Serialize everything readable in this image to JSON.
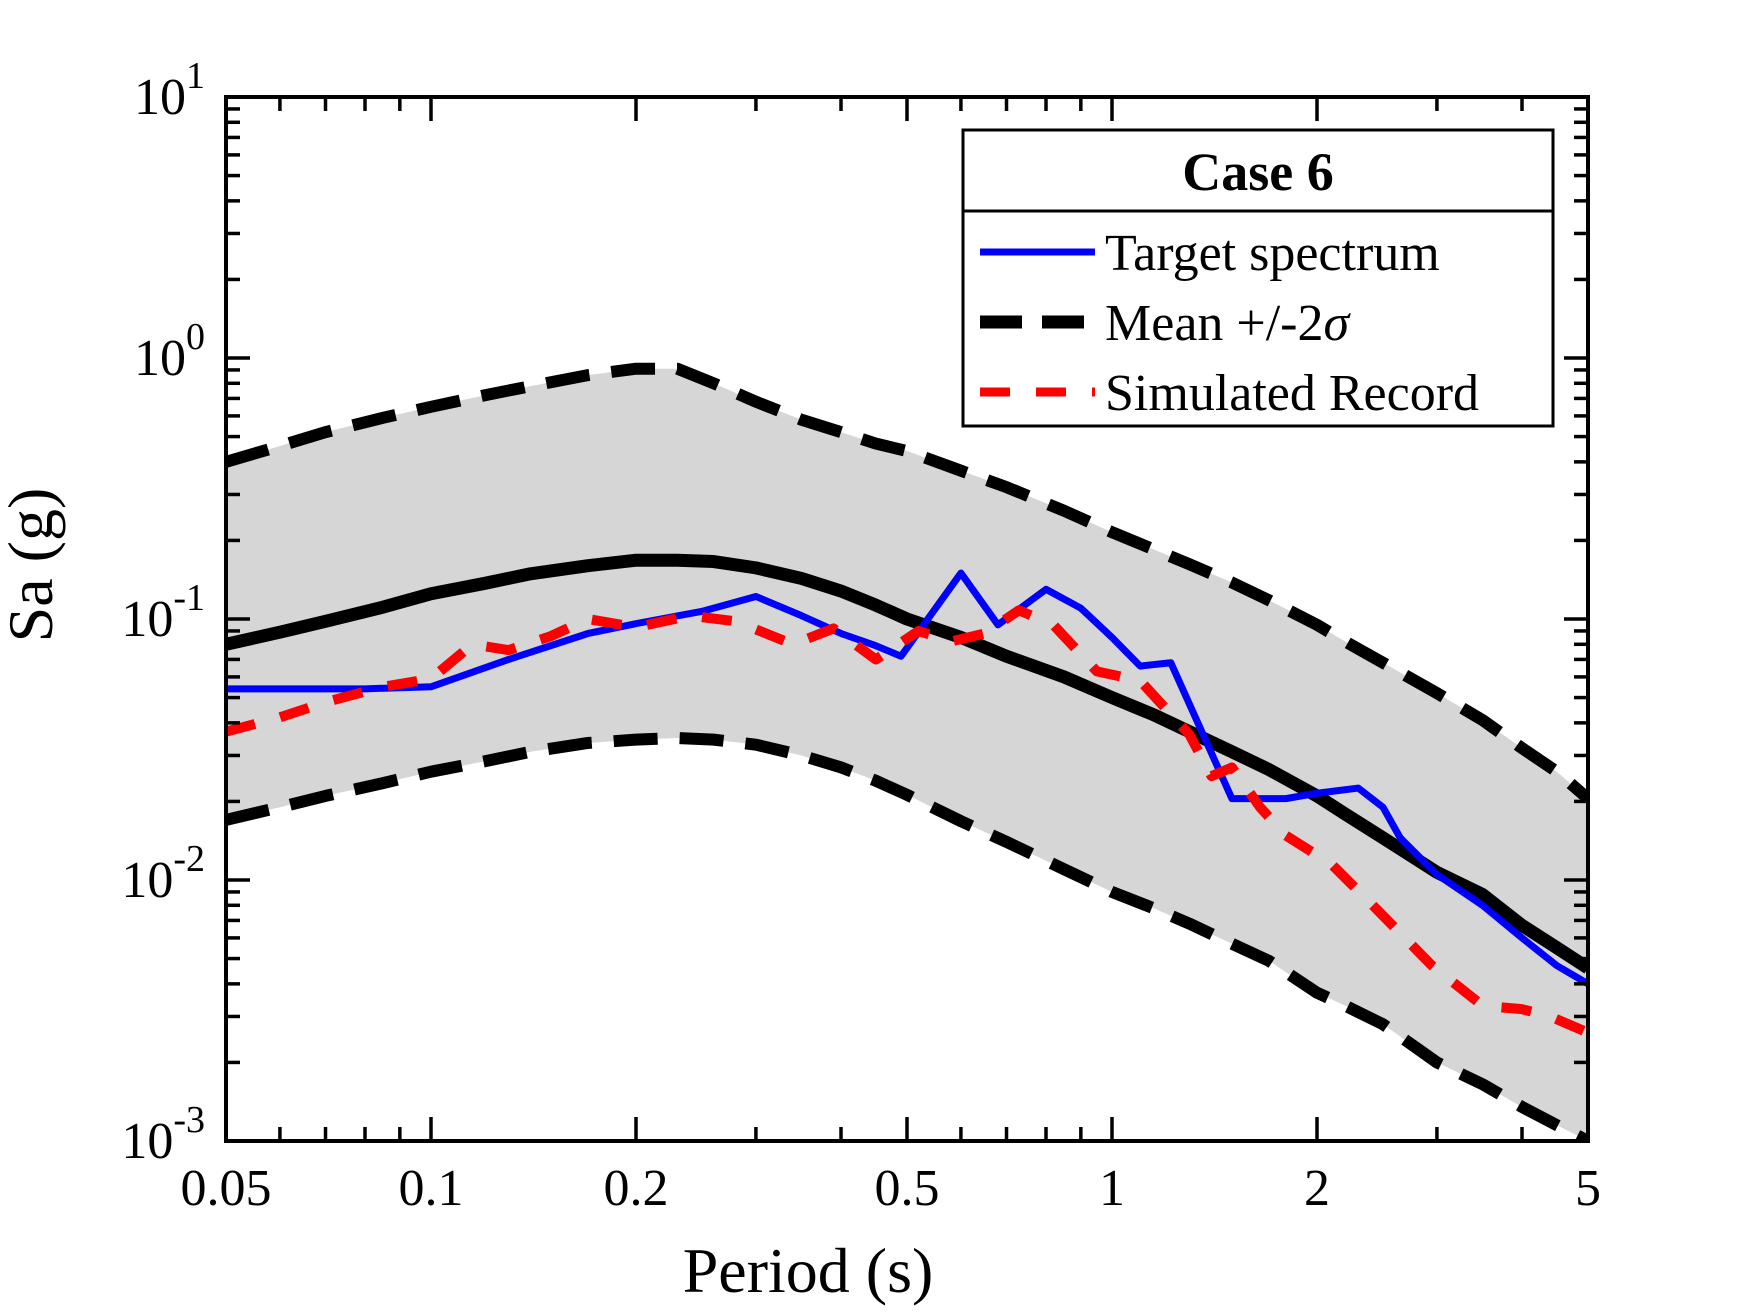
{
  "figure": {
    "background": "#ffffff"
  },
  "chart_data": {
    "type": "line",
    "title": "",
    "xlabel": "Period (s)",
    "ylabel": "Sa (g)",
    "x_scale": "log",
    "y_scale": "log",
    "xlim": [
      0.05,
      5
    ],
    "ylim": [
      0.001,
      10
    ],
    "grid": "off",
    "legend_position": "upper right",
    "x_major_ticks": [
      0.05,
      0.1,
      0.2,
      0.5,
      1,
      2,
      5
    ],
    "x_major_tick_labels": [
      "0.05",
      "0.1",
      "0.2",
      "0.5",
      "1",
      "2",
      "5"
    ],
    "x_minor_ticks": [
      0.06,
      0.07,
      0.08,
      0.09,
      0.3,
      0.4,
      0.6,
      0.7,
      0.8,
      0.9,
      3,
      4
    ],
    "y_major_tick_exponents": [
      -3,
      -2,
      -1,
      0,
      1
    ],
    "y_minor_tick_decades": [
      -3,
      -2,
      -1,
      0
    ],
    "y_minor_tick_multipliers": [
      2,
      3,
      4,
      5,
      6,
      7,
      8,
      9
    ],
    "colors": {
      "target": "#0000ff",
      "mean": "#000000",
      "band_line": "#000000",
      "band_fill": "#d6d6d6",
      "simulated": "#ff0000",
      "axis": "#000000"
    },
    "legend": {
      "title": "Case 6",
      "entries": [
        {
          "label": "Target spectrum",
          "series": "target"
        },
        {
          "label": "Mean +/-2",
          "sigma": "σ",
          "series": "band"
        },
        {
          "label": "Simulated Record",
          "series": "simulated"
        }
      ]
    },
    "band": {
      "name": "Mean +/- 2 sigma band",
      "fill": "#d6d6d6"
    },
    "series": [
      {
        "name": "Mean +2sigma",
        "role": "band_upper",
        "color": "#000000",
        "line": "dashed",
        "width": 12,
        "dash": "44 22",
        "x": [
          0.05,
          0.06,
          0.07,
          0.085,
          0.1,
          0.12,
          0.14,
          0.17,
          0.2,
          0.23,
          0.26,
          0.3,
          0.35,
          0.4,
          0.45,
          0.5,
          0.6,
          0.7,
          0.85,
          1.0,
          1.15,
          1.3,
          1.5,
          1.7,
          2.0,
          2.2,
          2.5,
          3.0,
          3.5,
          4.0,
          4.5,
          5.0
        ],
        "y": [
          0.4,
          0.46,
          0.52,
          0.59,
          0.65,
          0.72,
          0.78,
          0.86,
          0.91,
          0.91,
          0.8,
          0.68,
          0.58,
          0.52,
          0.47,
          0.44,
          0.37,
          0.32,
          0.26,
          0.215,
          0.185,
          0.162,
          0.138,
          0.118,
          0.095,
          0.082,
          0.068,
          0.052,
          0.041,
          0.032,
          0.026,
          0.0205
        ]
      },
      {
        "name": "Mean -2sigma",
        "role": "band_lower",
        "color": "#000000",
        "line": "dashed",
        "width": 12,
        "dash": "44 22",
        "x": [
          0.05,
          0.06,
          0.07,
          0.085,
          0.1,
          0.12,
          0.14,
          0.17,
          0.2,
          0.23,
          0.26,
          0.3,
          0.35,
          0.4,
          0.45,
          0.5,
          0.6,
          0.7,
          0.85,
          1.0,
          1.15,
          1.3,
          1.5,
          1.7,
          2.0,
          2.2,
          2.5,
          3.0,
          3.5,
          4.0,
          4.5,
          5.0
        ],
        "y": [
          0.017,
          0.019,
          0.021,
          0.0235,
          0.026,
          0.0285,
          0.031,
          0.0335,
          0.0345,
          0.035,
          0.0345,
          0.033,
          0.03,
          0.027,
          0.024,
          0.0212,
          0.0168,
          0.014,
          0.011,
          0.009,
          0.0078,
          0.0068,
          0.0057,
          0.0049,
          0.0037,
          0.0033,
          0.0028,
          0.002,
          0.00165,
          0.00135,
          0.00115,
          0.001
        ]
      },
      {
        "name": "Mean",
        "role": "mean",
        "color": "#000000",
        "line": "solid",
        "width": 13,
        "dash": "",
        "x": [
          0.05,
          0.06,
          0.07,
          0.085,
          0.1,
          0.12,
          0.14,
          0.17,
          0.2,
          0.23,
          0.26,
          0.3,
          0.35,
          0.4,
          0.45,
          0.5,
          0.6,
          0.7,
          0.85,
          1.0,
          1.15,
          1.3,
          1.5,
          1.7,
          2.0,
          2.2,
          2.5,
          3.0,
          3.5,
          4.0,
          4.5,
          5.0
        ],
        "y": [
          0.08,
          0.089,
          0.098,
          0.111,
          0.125,
          0.137,
          0.149,
          0.16,
          0.168,
          0.168,
          0.166,
          0.157,
          0.143,
          0.128,
          0.113,
          0.1,
          0.085,
          0.072,
          0.06,
          0.05,
          0.043,
          0.037,
          0.031,
          0.0265,
          0.021,
          0.0179,
          0.0145,
          0.0107,
          0.0088,
          0.0067,
          0.0055,
          0.0046
        ]
      },
      {
        "name": "Target spectrum",
        "role": "target",
        "color": "#0000ff",
        "line": "solid",
        "width": 7,
        "dash": "",
        "x": [
          0.05,
          0.08,
          0.1,
          0.13,
          0.17,
          0.2,
          0.25,
          0.3,
          0.35,
          0.4,
          0.45,
          0.49,
          0.6,
          0.68,
          0.8,
          0.9,
          1.0,
          1.1,
          1.22,
          1.5,
          1.8,
          2.0,
          2.3,
          2.5,
          2.65,
          3.0,
          3.5,
          4.0,
          4.5,
          5.0
        ],
        "y": [
          0.054,
          0.054,
          0.055,
          0.07,
          0.088,
          0.096,
          0.107,
          0.122,
          0.103,
          0.088,
          0.079,
          0.072,
          0.15,
          0.095,
          0.13,
          0.11,
          0.085,
          0.066,
          0.068,
          0.0205,
          0.0205,
          0.0215,
          0.0225,
          0.019,
          0.0145,
          0.0105,
          0.008,
          0.006,
          0.0047,
          0.004
        ]
      },
      {
        "name": "Simulated Record",
        "role": "simulated",
        "color": "#ff0000",
        "line": "dashed",
        "width": 10,
        "dash": "30 26",
        "x": [
          0.05,
          0.06,
          0.07,
          0.085,
          0.1,
          0.115,
          0.13,
          0.15,
          0.17,
          0.2,
          0.24,
          0.28,
          0.34,
          0.39,
          0.45,
          0.52,
          0.58,
          0.65,
          0.73,
          0.82,
          0.95,
          1.1,
          1.3,
          1.4,
          1.5,
          1.65,
          1.8,
          2.1,
          2.45,
          2.95,
          3.5,
          4.0,
          4.4,
          5.0
        ],
        "y": [
          0.037,
          0.042,
          0.048,
          0.055,
          0.059,
          0.08,
          0.076,
          0.086,
          0.1,
          0.093,
          0.103,
          0.098,
          0.08,
          0.092,
          0.07,
          0.09,
          0.082,
          0.088,
          0.108,
          0.095,
          0.063,
          0.058,
          0.036,
          0.025,
          0.027,
          0.019,
          0.0148,
          0.0115,
          0.0077,
          0.0047,
          0.0033,
          0.0032,
          0.003,
          0.0026
        ]
      }
    ]
  }
}
